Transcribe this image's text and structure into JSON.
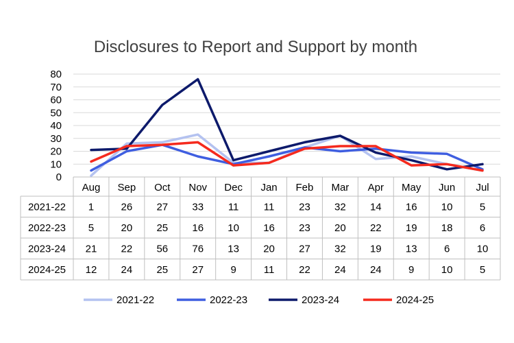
{
  "chart_data": {
    "type": "line",
    "title": "Disclosures to Report and Support by month",
    "xlabel": "",
    "ylabel": "",
    "ylim": [
      0,
      80
    ],
    "yticks": [
      0,
      10,
      20,
      30,
      40,
      50,
      60,
      70,
      80
    ],
    "grid": true,
    "legend": "bottom",
    "categories": [
      "Aug",
      "Sep",
      "Oct",
      "Nov",
      "Dec",
      "Jan",
      "Feb",
      "Mar",
      "Apr",
      "May",
      "Jun",
      "Jul"
    ],
    "series": [
      {
        "name": "2021-22",
        "color": "#b4c2f0",
        "values": [
          1,
          26,
          27,
          33,
          11,
          11,
          23,
          32,
          14,
          16,
          10,
          5
        ]
      },
      {
        "name": "2022-23",
        "color": "#3f5ee0",
        "values": [
          5,
          20,
          25,
          16,
          10,
          16,
          23,
          20,
          22,
          19,
          18,
          6
        ]
      },
      {
        "name": "2023-24",
        "color": "#0d1a6b",
        "values": [
          21,
          22,
          56,
          76,
          13,
          20,
          27,
          32,
          19,
          13,
          6,
          10
        ]
      },
      {
        "name": "2024-25",
        "color": "#f52a1e",
        "values": [
          12,
          24,
          25,
          27,
          9,
          11,
          22,
          24,
          24,
          9,
          10,
          5
        ]
      }
    ]
  }
}
